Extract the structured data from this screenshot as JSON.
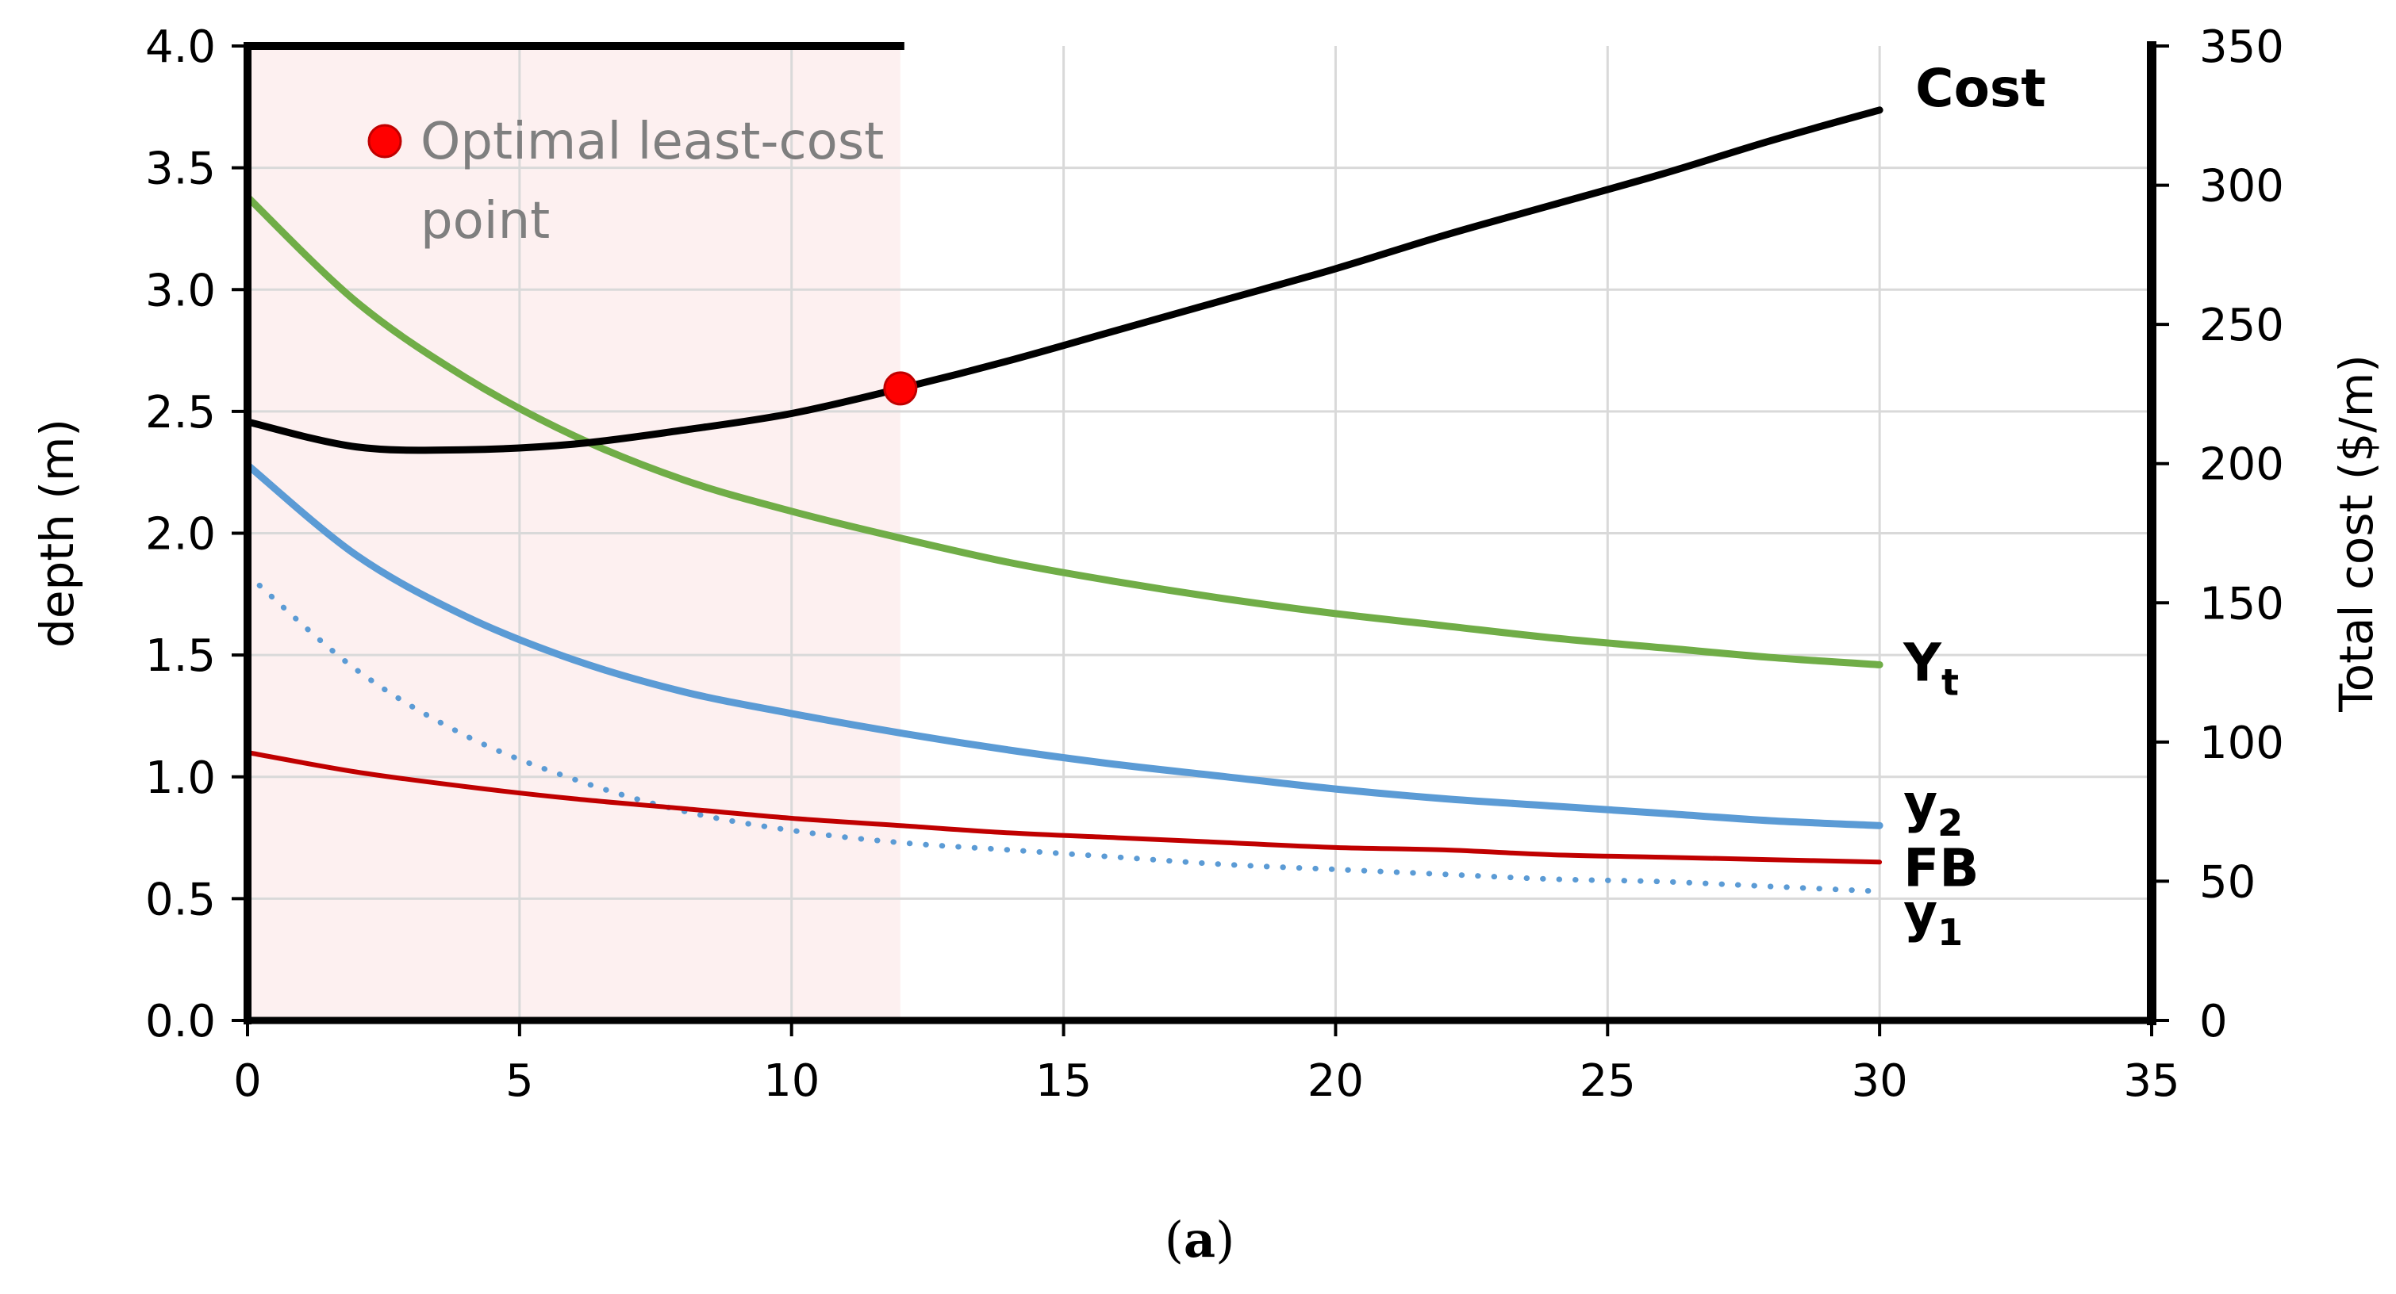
{
  "chart_data": {
    "type": "line",
    "xlabel": "",
    "ylabel": "depth (m)",
    "y2label": "Total cost ($/m)",
    "xlim": [
      0,
      35
    ],
    "ylim": [
      0,
      4.0
    ],
    "y2lim": [
      0,
      350
    ],
    "x_ticks": [
      "0",
      "5",
      "10",
      "15",
      "20",
      "25",
      "30",
      "35"
    ],
    "y_ticks": [
      "0.0",
      "0.5",
      "1.0",
      "1.5",
      "2.0",
      "2.5",
      "3.0",
      "3.5",
      "4.0"
    ],
    "y2_ticks": [
      "0",
      "50",
      "100",
      "150",
      "200",
      "250",
      "300",
      "350"
    ],
    "grid": true,
    "shaded_region": {
      "x": [
        0,
        12
      ],
      "color": "#fdf0f0"
    },
    "x": [
      0,
      2,
      4,
      6,
      8,
      10,
      12,
      14,
      16,
      18,
      20,
      22,
      24,
      26,
      28,
      30
    ],
    "series": [
      {
        "name": "Cost",
        "axis": "right",
        "color": "#000000",
        "values": [
          215,
          206,
          205,
          207,
          212,
          218,
          227,
          237,
          248,
          259,
          270,
          282,
          293,
          304,
          316,
          327
        ]
      },
      {
        "name": "Y",
        "subscript": "t",
        "axis": "left",
        "color": "#70ad47",
        "values": [
          3.38,
          2.95,
          2.64,
          2.4,
          2.22,
          2.09,
          1.98,
          1.88,
          1.8,
          1.73,
          1.67,
          1.62,
          1.57,
          1.53,
          1.49,
          1.46
        ]
      },
      {
        "name": "y",
        "subscript": "2",
        "axis": "left",
        "color": "#5b9bd5",
        "values": [
          2.28,
          1.91,
          1.66,
          1.48,
          1.35,
          1.26,
          1.18,
          1.11,
          1.05,
          1.0,
          0.95,
          0.91,
          0.88,
          0.85,
          0.82,
          0.8
        ]
      },
      {
        "name": "FB",
        "axis": "left",
        "color": "#c00000",
        "values": [
          1.1,
          1.02,
          0.96,
          0.91,
          0.87,
          0.83,
          0.8,
          0.77,
          0.75,
          0.73,
          0.71,
          0.7,
          0.68,
          0.67,
          0.66,
          0.65
        ]
      },
      {
        "name": "y",
        "subscript": "1",
        "axis": "left",
        "color": "#5b9bd5",
        "dashed": true,
        "values": [
          1.83,
          1.44,
          1.17,
          0.99,
          0.86,
          0.78,
          0.73,
          0.7,
          0.67,
          0.64,
          0.62,
          0.6,
          0.58,
          0.57,
          0.55,
          0.53
        ]
      }
    ],
    "optimal_point": {
      "x": 12,
      "y2": 227,
      "color": "#ff0000",
      "label_line1": "Optimal least-cost",
      "label_line2": "point"
    },
    "caption_open": "(",
    "caption_letter": "a",
    "caption_close": ")"
  }
}
